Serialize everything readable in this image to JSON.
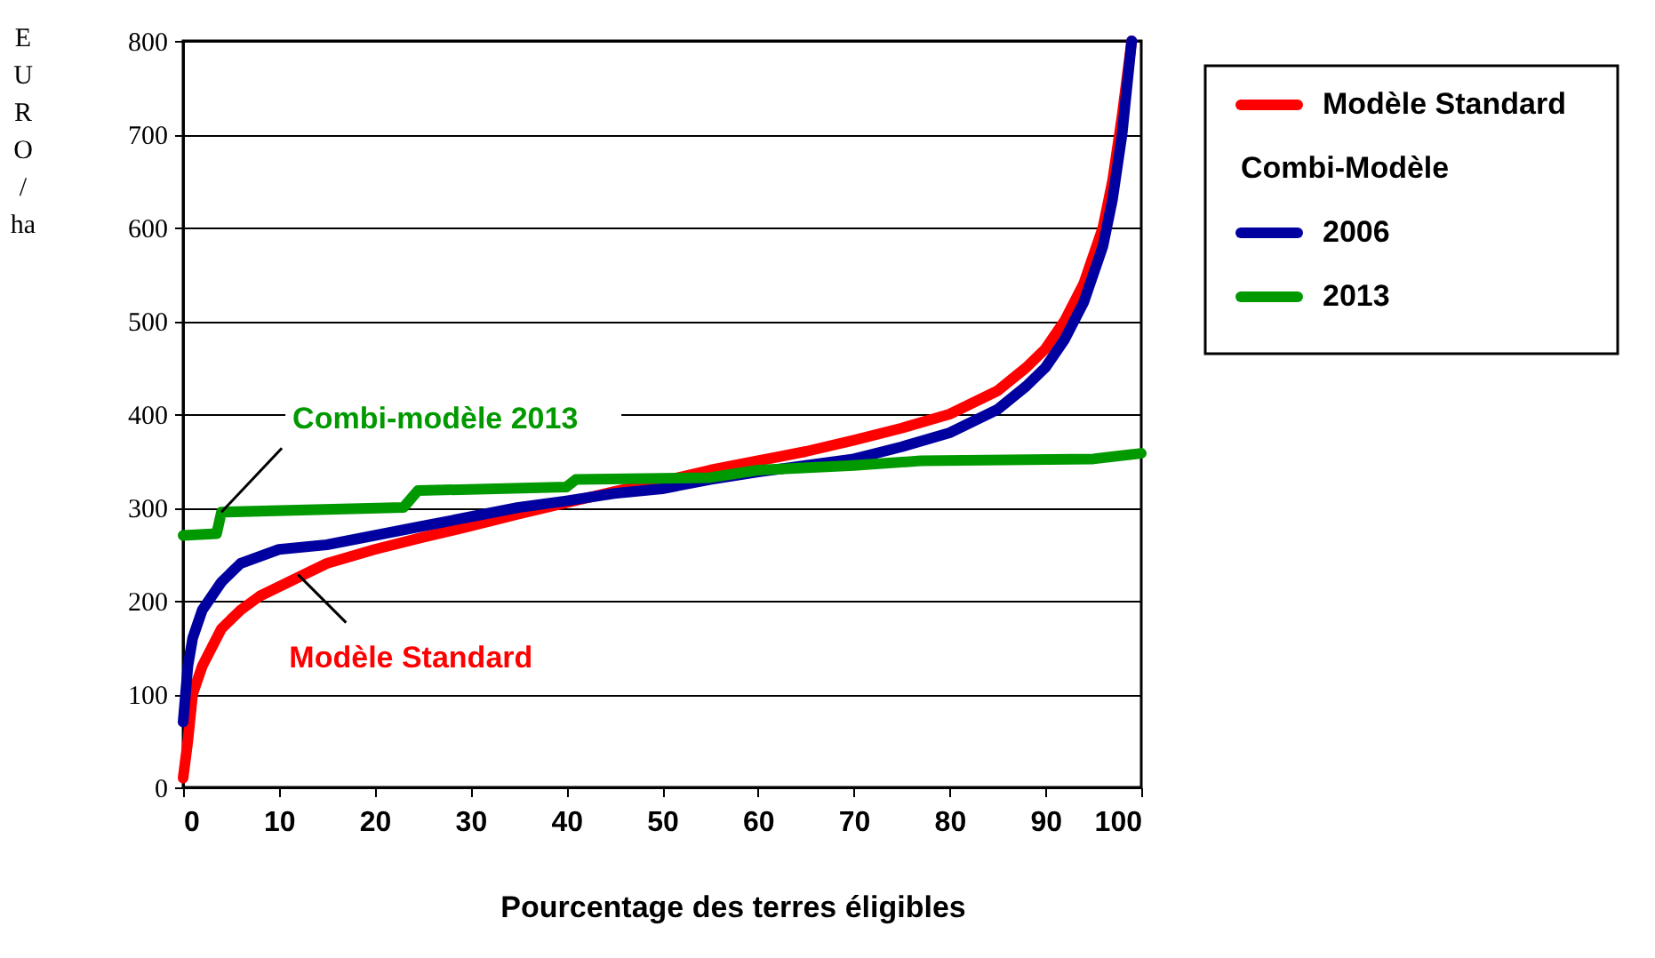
{
  "chart_data": {
    "type": "line",
    "xlabel": "Pourcentage des terres éligibles",
    "ylabel": "EURO/ha",
    "legend_title": "Combi-Modèle",
    "xlim": [
      0,
      100
    ],
    "ylim": [
      0,
      800
    ],
    "xticks": [
      0,
      10,
      20,
      30,
      40,
      50,
      60,
      70,
      80,
      90,
      100
    ],
    "yticks": [
      0,
      100,
      200,
      300,
      400,
      500,
      600,
      700,
      800
    ],
    "grid": "y",
    "legend": "top right",
    "line_style": "solid",
    "marker": "none",
    "annotations": [
      {
        "text": "Combi-modèle  2013",
        "x": 4,
        "y": 295
      },
      {
        "text": "Modèle Standard",
        "x": 12,
        "y": 228
      }
    ],
    "series": [
      {
        "name": "Modèle Standard",
        "color": "#ff0000",
        "x": [
          0,
          0.5,
          1,
          2,
          4,
          6,
          8,
          10,
          15,
          20,
          25,
          30,
          35,
          40,
          45,
          50,
          55,
          60,
          65,
          70,
          75,
          80,
          85,
          88,
          90,
          92,
          94,
          96,
          97,
          98,
          99
        ],
        "values": [
          10,
          50,
          100,
          130,
          170,
          190,
          205,
          215,
          240,
          255,
          268,
          280,
          293,
          305,
          317,
          328,
          340,
          350,
          360,
          372,
          385,
          400,
          425,
          450,
          470,
          500,
          540,
          600,
          650,
          720,
          800
        ]
      },
      {
        "name": "2006",
        "color": "#0000a0",
        "x": [
          0,
          0.5,
          1,
          2,
          4,
          6,
          10,
          15,
          20,
          25,
          30,
          35,
          40,
          45,
          50,
          55,
          60,
          65,
          70,
          75,
          80,
          85,
          88,
          90,
          92,
          94,
          96,
          97,
          98,
          99
        ],
        "values": [
          70,
          130,
          160,
          190,
          220,
          240,
          255,
          260,
          270,
          280,
          290,
          300,
          307,
          315,
          320,
          330,
          338,
          345,
          352,
          365,
          380,
          405,
          430,
          450,
          480,
          520,
          580,
          630,
          700,
          800
        ]
      },
      {
        "name": "2013",
        "color": "#009900",
        "x": [
          0,
          3.5,
          4,
          23,
          24.5,
          40,
          41,
          55,
          60,
          70,
          77,
          95,
          100
        ],
        "values": [
          270,
          272,
          295,
          300,
          318,
          322,
          330,
          332,
          340,
          345,
          350,
          352,
          358
        ]
      }
    ]
  }
}
